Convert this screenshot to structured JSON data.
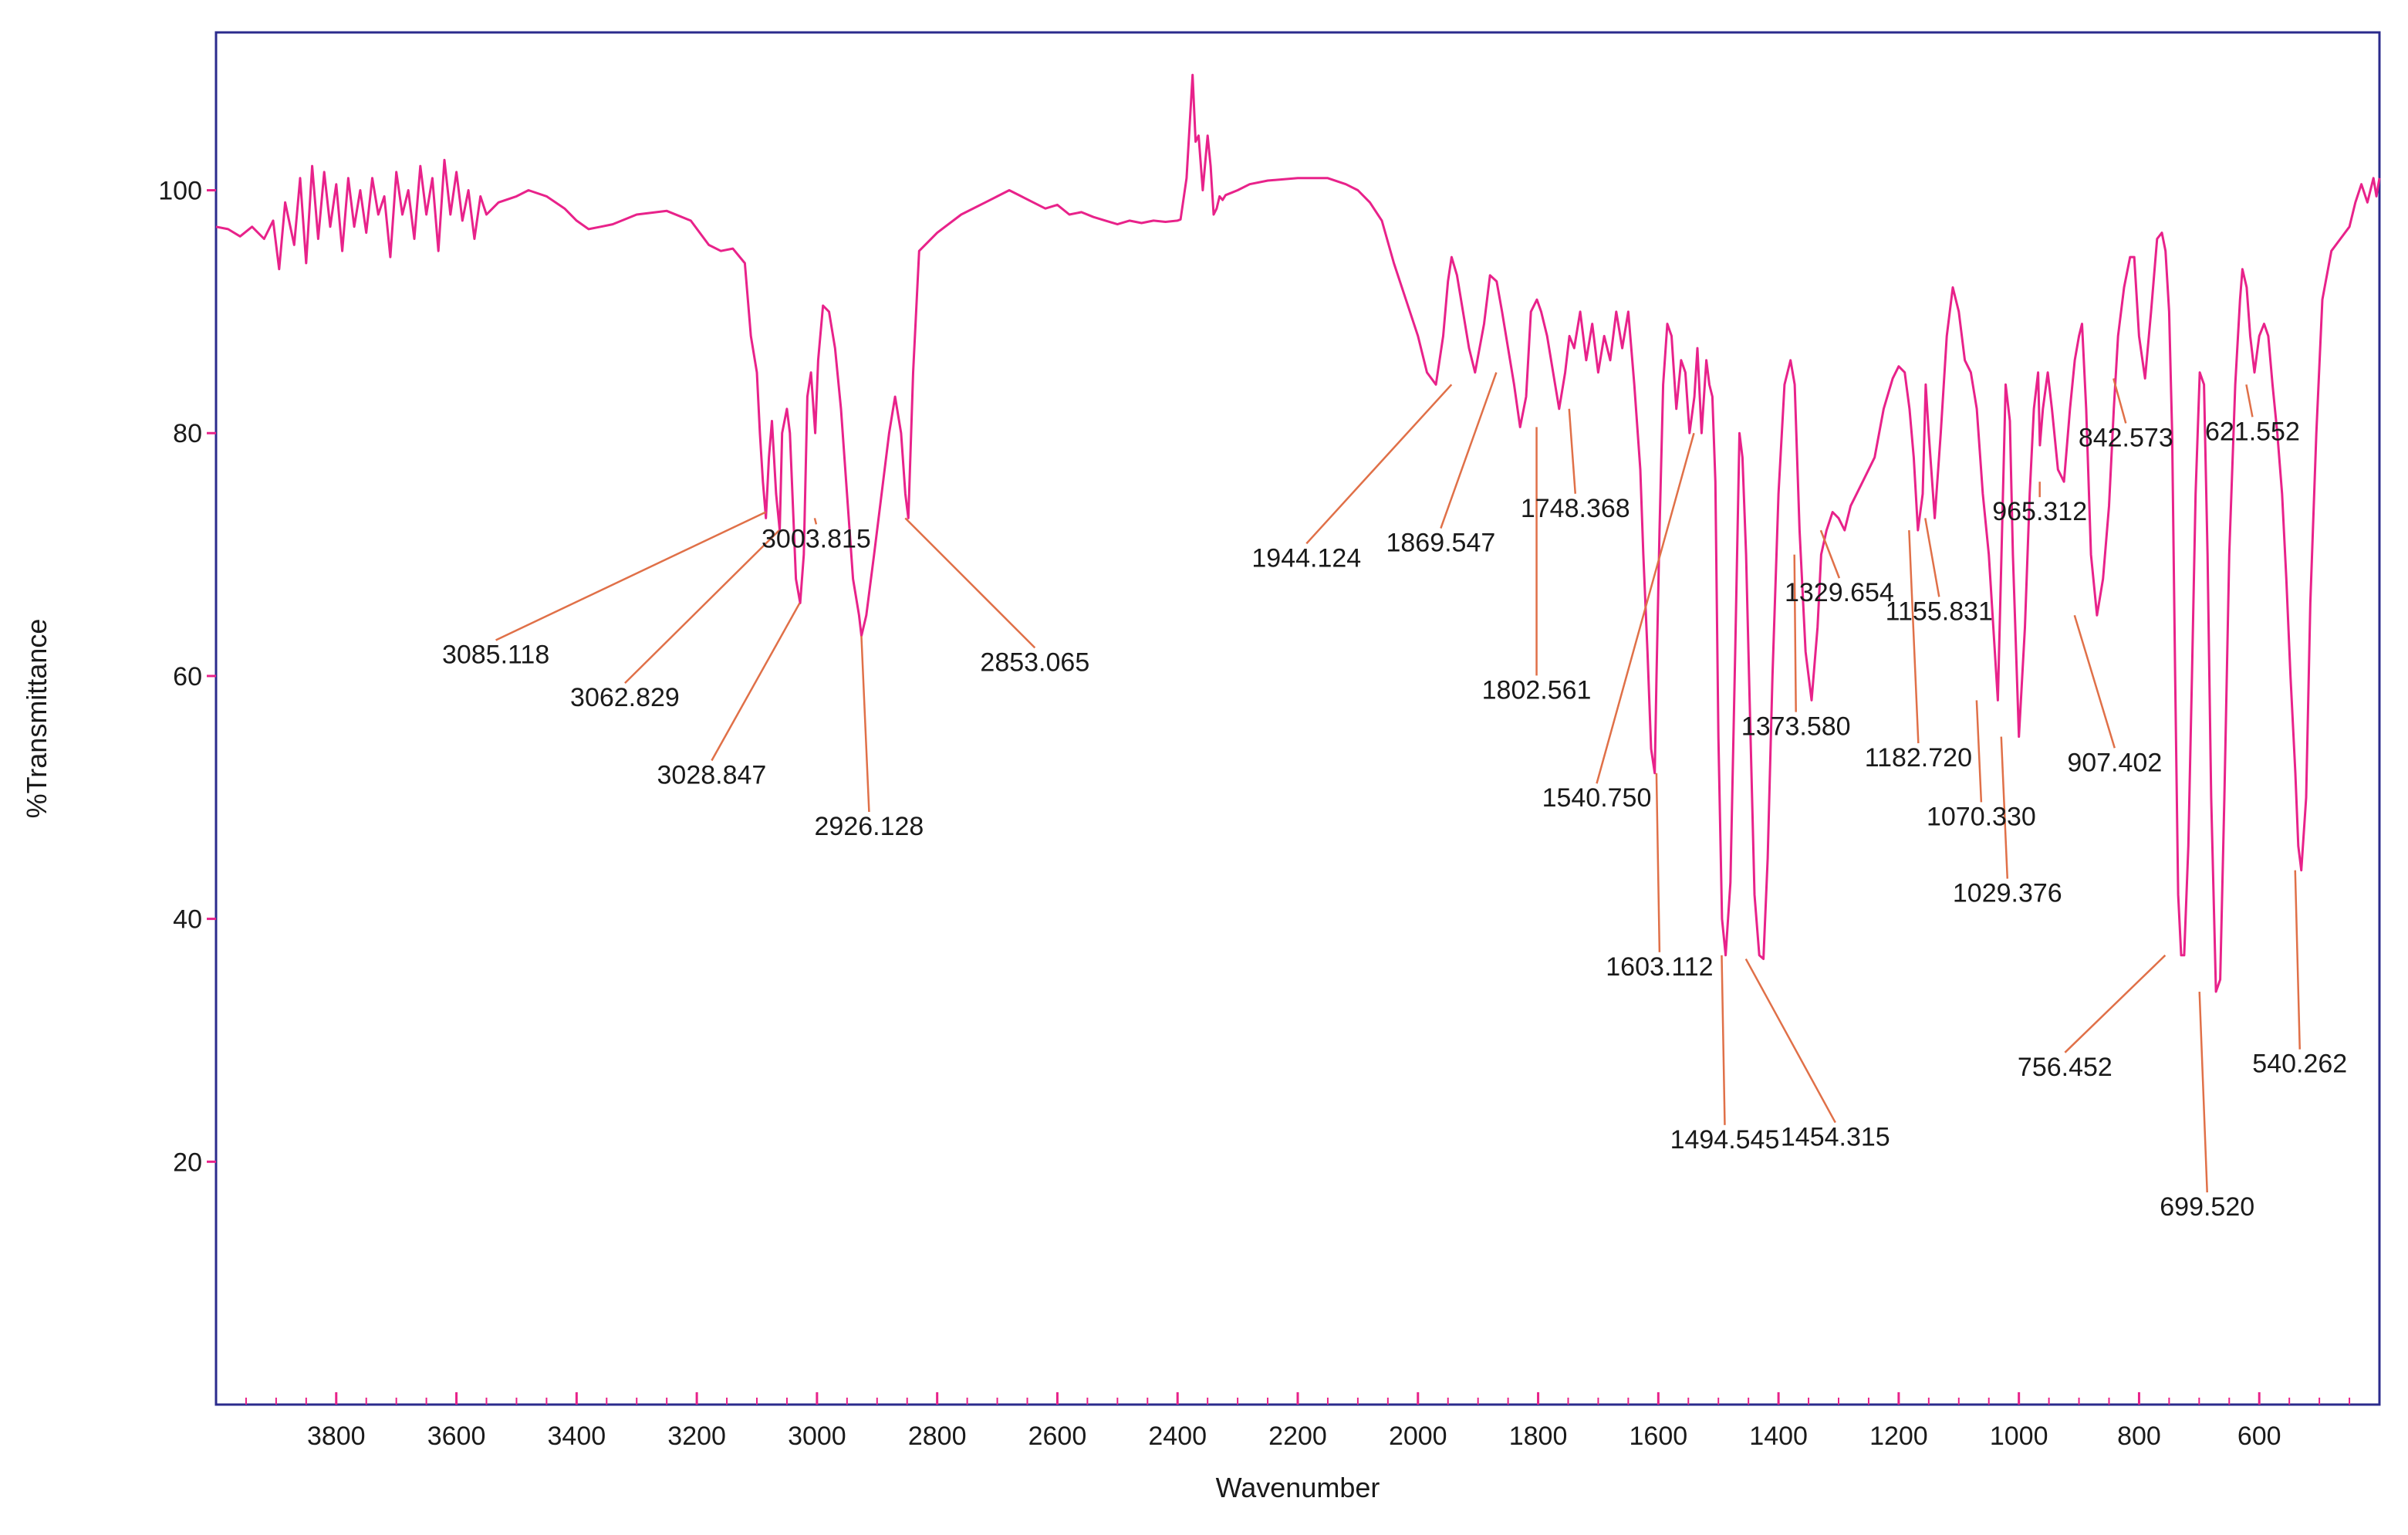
{
  "chart_data": {
    "type": "line",
    "xlabel": "Wavenumber",
    "ylabel": "%Transmittance",
    "xlim": [
      4000,
      400
    ],
    "ylim": [
      0,
      113
    ],
    "x_reversed": true,
    "grid": false,
    "xticks": [
      3800,
      3600,
      3400,
      3200,
      3000,
      2800,
      2600,
      2400,
      2200,
      2000,
      1800,
      1600,
      1400,
      1200,
      1000,
      800,
      600
    ],
    "yticks": [
      20,
      40,
      60,
      80,
      100
    ],
    "colors": {
      "spectrum": "#e8228a",
      "leader": "#e07048",
      "frame": "#2b2b8c",
      "tick": "#e8228a",
      "text": "#1a1a1a"
    },
    "series": [
      {
        "x": [
          4000,
          3980,
          3960,
          3940,
          3920,
          3905,
          3895,
          3885,
          3870,
          3860,
          3850,
          3840,
          3830,
          3820,
          3810,
          3800,
          3790,
          3780,
          3770,
          3760,
          3750,
          3740,
          3730,
          3720,
          3710,
          3700,
          3690,
          3680,
          3670,
          3660,
          3650,
          3640,
          3630,
          3620,
          3610,
          3600,
          3590,
          3580,
          3570,
          3560,
          3550,
          3530,
          3500,
          3480,
          3450,
          3420,
          3400,
          3380,
          3360,
          3340,
          3300,
          3250,
          3210,
          3180,
          3160,
          3140,
          3120,
          3110,
          3100,
          3095,
          3090,
          3085,
          3080,
          3075,
          3068,
          3062,
          3058,
          3050,
          3045,
          3040,
          3035,
          3028,
          3022,
          3016,
          3010,
          3003,
          2998,
          2990,
          2980,
          2970,
          2960,
          2950,
          2940,
          2930,
          2926,
          2918,
          2905,
          2890,
          2880,
          2870,
          2860,
          2853,
          2848,
          2840,
          2830,
          2800,
          2760,
          2720,
          2700,
          2680,
          2660,
          2640,
          2620,
          2600,
          2580,
          2560,
          2540,
          2520,
          2500,
          2480,
          2460,
          2440,
          2420,
          2400,
          2395,
          2385,
          2375,
          2370,
          2365,
          2358,
          2350,
          2345,
          2340,
          2335,
          2330,
          2325,
          2320,
          2310,
          2300,
          2280,
          2250,
          2200,
          2150,
          2120,
          2100,
          2080,
          2060,
          2040,
          2020,
          2000,
          1985,
          1970,
          1958,
          1950,
          1944,
          1935,
          1925,
          1915,
          1905,
          1890,
          1880,
          1869,
          1860,
          1850,
          1840,
          1830,
          1820,
          1812,
          1802,
          1795,
          1785,
          1775,
          1765,
          1755,
          1748,
          1740,
          1730,
          1720,
          1710,
          1700,
          1690,
          1680,
          1670,
          1660,
          1650,
          1640,
          1630,
          1625,
          1618,
          1612,
          1606,
          1603,
          1598,
          1592,
          1585,
          1578,
          1570,
          1562,
          1555,
          1548,
          1540,
          1535,
          1528,
          1520,
          1515,
          1510,
          1505,
          1500,
          1494,
          1488,
          1480,
          1472,
          1465,
          1460,
          1454,
          1448,
          1440,
          1432,
          1425,
          1418,
          1410,
          1400,
          1390,
          1380,
          1373,
          1365,
          1355,
          1345,
          1335,
          1329,
          1320,
          1310,
          1300,
          1290,
          1280,
          1260,
          1240,
          1225,
          1210,
          1200,
          1190,
          1182,
          1175,
          1168,
          1160,
          1155,
          1150,
          1140,
          1130,
          1120,
          1110,
          1100,
          1090,
          1080,
          1070,
          1060,
          1050,
          1040,
          1035,
          1029,
          1022,
          1015,
          1010,
          1000,
          990,
          982,
          975,
          968,
          965,
          960,
          952,
          945,
          935,
          925,
          915,
          907,
          900,
          895,
          888,
          880,
          870,
          860,
          850,
          842,
          835,
          825,
          815,
          808,
          800,
          790,
          780,
          770,
          762,
          756,
          750,
          745,
          740,
          735,
          730,
          725,
          718,
          712,
          706,
          699,
          692,
          686,
          680,
          672,
          665,
          658,
          650,
          640,
          632,
          628,
          621,
          615,
          608,
          600,
          592,
          585,
          578,
          570,
          562,
          555,
          548,
          540,
          535,
          530,
          522,
          515,
          505,
          495,
          480,
          465,
          450,
          440,
          430,
          420,
          410,
          405,
          400
        ],
        "y": [
          97,
          96.8,
          96.2,
          97,
          96,
          97.5,
          93.5,
          99,
          95.5,
          101,
          94,
          102,
          96,
          101.5,
          97,
          100.5,
          95,
          101,
          97,
          100,
          96.5,
          101,
          98,
          99.5,
          94.5,
          101.5,
          98,
          100,
          96,
          102,
          98,
          101,
          95,
          102.5,
          98,
          101.5,
          97.5,
          100,
          96,
          99.5,
          98,
          99,
          99.5,
          100,
          99.5,
          98.5,
          97.5,
          96.8,
          97,
          97.2,
          98,
          98.3,
          97.5,
          95.5,
          95,
          95.2,
          94,
          88,
          85,
          80,
          76,
          73,
          78,
          81,
          75,
          72,
          80,
          82,
          80,
          74,
          68,
          66,
          70,
          83,
          85,
          80,
          86,
          90.5,
          90,
          87,
          82,
          75,
          68,
          65,
          63.3,
          65,
          70,
          76,
          80,
          83,
          80,
          75,
          73,
          85,
          95,
          96.5,
          98,
          99,
          99.5,
          100,
          99.5,
          99,
          98.5,
          98.8,
          98,
          98.2,
          97.8,
          97.5,
          97.2,
          97.5,
          97.3,
          97.5,
          97.4,
          97.5,
          97.6,
          101,
          109.5,
          104,
          104.5,
          100,
          104.5,
          102,
          98,
          98.5,
          99.5,
          99.2,
          99.6,
          99.8,
          100,
          100.5,
          100.8,
          101,
          101,
          100.5,
          100,
          99,
          97.5,
          94,
          91,
          88,
          85,
          84,
          88,
          92.5,
          94.5,
          93,
          90,
          87,
          85,
          89,
          93,
          92.5,
          90,
          87,
          84,
          80.5,
          83,
          90,
          91,
          90,
          88,
          85,
          82,
          85,
          88,
          87,
          90,
          86,
          89,
          85,
          88,
          86,
          90,
          87,
          90,
          84,
          77,
          70,
          62,
          54,
          52,
          60,
          72,
          84,
          89,
          88,
          82,
          86,
          85,
          80,
          83,
          87,
          80,
          86,
          84,
          83,
          76,
          55,
          40,
          37,
          43,
          62,
          80,
          78,
          70,
          58,
          42,
          37,
          36.7,
          45,
          60,
          75,
          84,
          86,
          84,
          72,
          62,
          58,
          64,
          70,
          72,
          73.5,
          73,
          72,
          74,
          76,
          78,
          82,
          84.5,
          85.5,
          85,
          82,
          78,
          72,
          75,
          84,
          80,
          73,
          80,
          88,
          92,
          90,
          86,
          85,
          82,
          75,
          70,
          62,
          58,
          70,
          84,
          81,
          70,
          55,
          64,
          75,
          82,
          85,
          79,
          82,
          85,
          82,
          77,
          76,
          82,
          86,
          88,
          89,
          82,
          70,
          65,
          68,
          74,
          82,
          88,
          92,
          94.5,
          94.5,
          88,
          84.5,
          90,
          96,
          96.5,
          95,
          90,
          80,
          60,
          42,
          37,
          37,
          46,
          60,
          75,
          85,
          84,
          70,
          50,
          34,
          35,
          50,
          70,
          84,
          91,
          93.5,
          92,
          88,
          85,
          88,
          89,
          88,
          84,
          80,
          75,
          68,
          60,
          52,
          46,
          44,
          50,
          66,
          80,
          91,
          95,
          96,
          97,
          99,
          100.5,
          99,
          101,
          99.5,
          101
        ]
      }
    ],
    "annotations": [
      {
        "label": "3085.118",
        "peak_x": 3085.118,
        "peak_y": 73.5
      },
      {
        "label": "3062.829",
        "peak_x": 3062.829,
        "peak_y": 72
      },
      {
        "label": "3028.847",
        "peak_x": 3028.847,
        "peak_y": 66
      },
      {
        "label": "3003.815",
        "peak_x": 3003.815,
        "peak_y": 73
      },
      {
        "label": "2926.128",
        "peak_x": 2926.128,
        "peak_y": 63.3
      },
      {
        "label": "2853.065",
        "peak_x": 2853.065,
        "peak_y": 73
      },
      {
        "label": "1944.124",
        "peak_x": 1944.124,
        "peak_y": 84
      },
      {
        "label": "1869.547",
        "peak_x": 1869.547,
        "peak_y": 85
      },
      {
        "label": "1802.561",
        "peak_x": 1802.561,
        "peak_y": 80.5
      },
      {
        "label": "1748.368",
        "peak_x": 1748.368,
        "peak_y": 82
      },
      {
        "label": "1603.112",
        "peak_x": 1603.112,
        "peak_y": 52
      },
      {
        "label": "1540.750",
        "peak_x": 1540.75,
        "peak_y": 80
      },
      {
        "label": "1494.545",
        "peak_x": 1494.545,
        "peak_y": 37
      },
      {
        "label": "1454.315",
        "peak_x": 1454.315,
        "peak_y": 36.7
      },
      {
        "label": "1373.580",
        "peak_x": 1373.58,
        "peak_y": 70
      },
      {
        "label": "1329.654",
        "peak_x": 1329.654,
        "peak_y": 72
      },
      {
        "label": "1182.720",
        "peak_x": 1182.72,
        "peak_y": 72
      },
      {
        "label": "1155.831",
        "peak_x": 1155.831,
        "peak_y": 73
      },
      {
        "label": "1070.330",
        "peak_x": 1070.33,
        "peak_y": 58
      },
      {
        "label": "1029.376",
        "peak_x": 1029.376,
        "peak_y": 55
      },
      {
        "label": "965.312",
        "peak_x": 965.312,
        "peak_y": 76
      },
      {
        "label": "907.402",
        "peak_x": 907.402,
        "peak_y": 65
      },
      {
        "label": "842.573",
        "peak_x": 842.573,
        "peak_y": 84.5
      },
      {
        "label": "756.452",
        "peak_x": 756.452,
        "peak_y": 37
      },
      {
        "label": "699.520",
        "peak_x": 699.52,
        "peak_y": 34
      },
      {
        "label": "621.552",
        "peak_x": 621.552,
        "peak_y": 84
      },
      {
        "label": "540.262",
        "peak_x": 540.262,
        "peak_y": 44
      }
    ]
  }
}
